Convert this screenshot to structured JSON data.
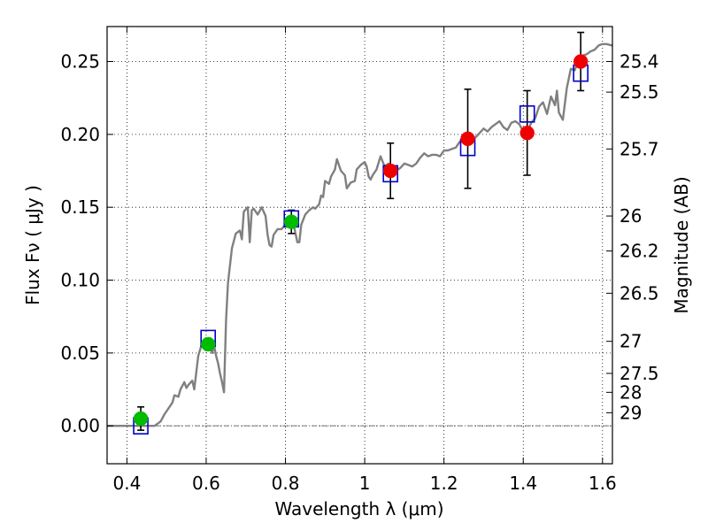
{
  "chart_data": {
    "type": "scatter",
    "xlabel": "Wavelength  λ (μm)",
    "ylabel": "Flux  Fν  ( μJy )",
    "y2label": "Magnitude (AB)",
    "xlim": [
      0.35,
      1.625
    ],
    "ylim": [
      -0.026,
      0.274
    ],
    "grid": true,
    "xticks": [
      0.4,
      0.6,
      0.8,
      1.0,
      1.2,
      1.4,
      1.6
    ],
    "xtick_labels": [
      "0.4",
      "0.6",
      "0.8",
      "1",
      "1.2",
      "1.4",
      "1.6"
    ],
    "yticks": [
      0.0,
      0.05,
      0.1,
      0.15,
      0.2,
      0.25
    ],
    "ytick_labels": [
      "0.00",
      "0.05",
      "0.10",
      "0.15",
      "0.20",
      "0.25"
    ],
    "mag_ticks": [
      {
        "label": "25.4",
        "flux": 0.25
      },
      {
        "label": "25.5",
        "flux": 0.229
      },
      {
        "label": "25.7",
        "flux": 0.19
      },
      {
        "label": "26",
        "flux": 0.144
      },
      {
        "label": "26.2",
        "flux": 0.12
      },
      {
        "label": "26.5",
        "flux": 0.091
      },
      {
        "label": "27",
        "flux": 0.058
      },
      {
        "label": "27.5",
        "flux": 0.036
      },
      {
        "label": "28",
        "flux": 0.023
      },
      {
        "label": "29",
        "flux": 0.009
      }
    ],
    "colors": {
      "model": "#808080",
      "green": "#00bb00",
      "red": "#ee0000",
      "box": "#0000cc",
      "zero": "#777777"
    },
    "series": [
      {
        "name": "model_spectrum",
        "type": "line",
        "points": [
          [
            0.35,
            0.0
          ],
          [
            0.47,
            0.0
          ],
          [
            0.485,
            0.003
          ],
          [
            0.495,
            0.008
          ],
          [
            0.505,
            0.012
          ],
          [
            0.515,
            0.016
          ],
          [
            0.52,
            0.021
          ],
          [
            0.53,
            0.02
          ],
          [
            0.535,
            0.025
          ],
          [
            0.545,
            0.03
          ],
          [
            0.55,
            0.026
          ],
          [
            0.555,
            0.028
          ],
          [
            0.565,
            0.031
          ],
          [
            0.57,
            0.025
          ],
          [
            0.58,
            0.048
          ],
          [
            0.59,
            0.057
          ],
          [
            0.6,
            0.052
          ],
          [
            0.61,
            0.054
          ],
          [
            0.615,
            0.05
          ],
          [
            0.62,
            0.055
          ],
          [
            0.625,
            0.048
          ],
          [
            0.63,
            0.043
          ],
          [
            0.635,
            0.036
          ],
          [
            0.64,
            0.03
          ],
          [
            0.645,
            0.023
          ],
          [
            0.65,
            0.072
          ],
          [
            0.655,
            0.098
          ],
          [
            0.665,
            0.122
          ],
          [
            0.675,
            0.132
          ],
          [
            0.685,
            0.134
          ],
          [
            0.69,
            0.128
          ],
          [
            0.695,
            0.147
          ],
          [
            0.705,
            0.15
          ],
          [
            0.71,
            0.126
          ],
          [
            0.715,
            0.148
          ],
          [
            0.72,
            0.149
          ],
          [
            0.73,
            0.145
          ],
          [
            0.74,
            0.15
          ],
          [
            0.75,
            0.144
          ],
          [
            0.755,
            0.131
          ],
          [
            0.76,
            0.124
          ],
          [
            0.765,
            0.123
          ],
          [
            0.77,
            0.131
          ],
          [
            0.78,
            0.135
          ],
          [
            0.79,
            0.135
          ],
          [
            0.8,
            0.138
          ],
          [
            0.81,
            0.142
          ],
          [
            0.82,
            0.139
          ],
          [
            0.83,
            0.126
          ],
          [
            0.835,
            0.126
          ],
          [
            0.84,
            0.138
          ],
          [
            0.85,
            0.145
          ],
          [
            0.86,
            0.148
          ],
          [
            0.87,
            0.15
          ],
          [
            0.875,
            0.149
          ],
          [
            0.885,
            0.152
          ],
          [
            0.89,
            0.158
          ],
          [
            0.895,
            0.157
          ],
          [
            0.9,
            0.168
          ],
          [
            0.91,
            0.166
          ],
          [
            0.915,
            0.171
          ],
          [
            0.925,
            0.176
          ],
          [
            0.93,
            0.183
          ],
          [
            0.94,
            0.175
          ],
          [
            0.95,
            0.172
          ],
          [
            0.955,
            0.163
          ],
          [
            0.965,
            0.167
          ],
          [
            0.975,
            0.168
          ],
          [
            0.98,
            0.176
          ],
          [
            0.99,
            0.179
          ],
          [
            1.0,
            0.181
          ],
          [
            1.005,
            0.178
          ],
          [
            1.01,
            0.171
          ],
          [
            1.015,
            0.169
          ],
          [
            1.02,
            0.172
          ],
          [
            1.03,
            0.176
          ],
          [
            1.04,
            0.185
          ],
          [
            1.05,
            0.178
          ],
          [
            1.06,
            0.18
          ],
          [
            1.07,
            0.178
          ],
          [
            1.08,
            0.175
          ],
          [
            1.09,
            0.177
          ],
          [
            1.1,
            0.18
          ],
          [
            1.11,
            0.179
          ],
          [
            1.12,
            0.178
          ],
          [
            1.13,
            0.18
          ],
          [
            1.14,
            0.184
          ],
          [
            1.15,
            0.187
          ],
          [
            1.16,
            0.185
          ],
          [
            1.17,
            0.186
          ],
          [
            1.18,
            0.186
          ],
          [
            1.19,
            0.185
          ],
          [
            1.2,
            0.189
          ],
          [
            1.21,
            0.189
          ],
          [
            1.22,
            0.19
          ],
          [
            1.23,
            0.191
          ],
          [
            1.24,
            0.195
          ],
          [
            1.25,
            0.196
          ],
          [
            1.26,
            0.197
          ],
          [
            1.27,
            0.195
          ],
          [
            1.28,
            0.198
          ],
          [
            1.29,
            0.201
          ],
          [
            1.3,
            0.204
          ],
          [
            1.31,
            0.202
          ],
          [
            1.32,
            0.205
          ],
          [
            1.33,
            0.207
          ],
          [
            1.34,
            0.209
          ],
          [
            1.35,
            0.205
          ],
          [
            1.36,
            0.203
          ],
          [
            1.37,
            0.208
          ],
          [
            1.38,
            0.209
          ],
          [
            1.39,
            0.207
          ],
          [
            1.4,
            0.202
          ],
          [
            1.41,
            0.201
          ],
          [
            1.42,
            0.208
          ],
          [
            1.43,
            0.211
          ],
          [
            1.44,
            0.219
          ],
          [
            1.45,
            0.222
          ],
          [
            1.46,
            0.214
          ],
          [
            1.47,
            0.226
          ],
          [
            1.48,
            0.22
          ],
          [
            1.485,
            0.23
          ],
          [
            1.49,
            0.215
          ],
          [
            1.5,
            0.21
          ],
          [
            1.51,
            0.232
          ],
          [
            1.52,
            0.245
          ],
          [
            1.53,
            0.244
          ],
          [
            1.54,
            0.252
          ],
          [
            1.55,
            0.254
          ],
          [
            1.56,
            0.255
          ],
          [
            1.57,
            0.257
          ],
          [
            1.58,
            0.258
          ],
          [
            1.59,
            0.261
          ],
          [
            1.6,
            0.262
          ],
          [
            1.61,
            0.262
          ],
          [
            1.625,
            0.261
          ]
        ]
      },
      {
        "name": "model_photometry",
        "type": "square",
        "points": [
          [
            0.435,
            0.0
          ],
          [
            0.605,
            0.06
          ],
          [
            0.815,
            0.142
          ],
          [
            1.065,
            0.173
          ],
          [
            1.26,
            0.191
          ],
          [
            1.41,
            0.214
          ],
          [
            1.545,
            0.242
          ]
        ]
      },
      {
        "name": "observed_green",
        "type": "circle",
        "points": [
          {
            "x": 0.435,
            "y": 0.005,
            "err": 0.008
          },
          {
            "x": 0.605,
            "y": 0.056,
            "err": 0.004
          },
          {
            "x": 0.815,
            "y": 0.14,
            "err": 0.008
          }
        ]
      },
      {
        "name": "observed_red",
        "type": "circle",
        "points": [
          {
            "x": 1.065,
            "y": 0.175,
            "err": 0.019
          },
          {
            "x": 1.26,
            "y": 0.197,
            "err": 0.034
          },
          {
            "x": 1.41,
            "y": 0.201,
            "err": 0.029
          },
          {
            "x": 1.545,
            "y": 0.25,
            "err": 0.02
          }
        ]
      }
    ]
  }
}
